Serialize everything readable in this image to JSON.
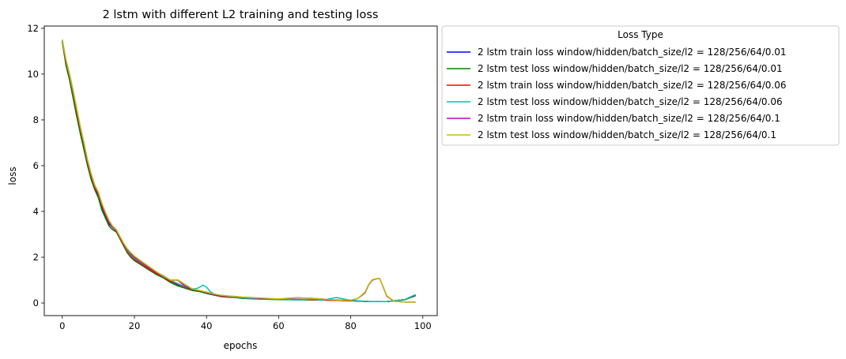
{
  "chart_data": {
    "type": "line",
    "title": "2 lstm with different L2 training and testing loss",
    "xlabel": "epochs",
    "ylabel": "loss",
    "xlim": [
      -5,
      104
    ],
    "ylim": [
      -0.55,
      12.1
    ],
    "xticks": [
      0,
      20,
      40,
      60,
      80,
      100
    ],
    "yticks": [
      0,
      2,
      4,
      6,
      8,
      10,
      12
    ],
    "grid": false,
    "legend_title": "Loss Type",
    "legend_position": "outside-top-right",
    "series": [
      {
        "name": "2 lstm train loss window/hidden/batch_size/l2 = 128/256/64/0.01",
        "color": "#0000ff",
        "x": [
          0,
          1,
          2,
          3,
          4,
          5,
          6,
          7,
          8,
          9,
          10,
          11,
          12,
          13,
          14,
          15,
          16,
          17,
          18,
          19,
          20,
          22,
          24,
          26,
          28,
          30,
          32,
          34,
          36,
          38,
          40,
          42,
          44,
          46,
          48,
          50,
          55,
          60,
          65,
          70,
          75,
          80,
          85,
          90,
          95,
          98
        ],
        "y": [
          11.45,
          10.5,
          9.85,
          9.1,
          8.3,
          7.55,
          6.85,
          6.1,
          5.5,
          5.0,
          4.7,
          4.2,
          3.8,
          3.45,
          3.3,
          3.15,
          2.85,
          2.55,
          2.25,
          2.05,
          1.9,
          1.7,
          1.5,
          1.3,
          1.15,
          0.95,
          0.8,
          0.7,
          0.6,
          0.55,
          0.45,
          0.38,
          0.3,
          0.26,
          0.25,
          0.22,
          0.18,
          0.16,
          0.15,
          0.14,
          0.12,
          0.1,
          0.06,
          0.06,
          0.15,
          0.35
        ]
      },
      {
        "name": "2 lstm test loss window/hidden/batch_size/l2  = 128/256/64/0.01",
        "color": "#008000",
        "x": [
          0,
          1,
          2,
          3,
          4,
          5,
          6,
          7,
          8,
          9,
          10,
          11,
          12,
          13,
          14,
          15,
          16,
          17,
          18,
          19,
          20,
          22,
          24,
          26,
          28,
          30,
          32,
          34,
          36,
          38,
          40,
          42,
          44,
          46,
          48,
          50,
          55,
          60,
          65,
          70,
          75,
          80,
          85,
          90,
          95,
          98
        ],
        "y": [
          11.4,
          10.4,
          9.75,
          8.95,
          8.15,
          7.4,
          6.7,
          6.0,
          5.4,
          4.95,
          4.6,
          4.05,
          3.7,
          3.35,
          3.2,
          3.1,
          2.8,
          2.5,
          2.2,
          2.0,
          1.85,
          1.65,
          1.45,
          1.25,
          1.1,
          0.9,
          0.75,
          0.65,
          0.55,
          0.5,
          0.42,
          0.35,
          0.28,
          0.25,
          0.24,
          0.2,
          0.17,
          0.15,
          0.14,
          0.13,
          0.12,
          0.1,
          0.07,
          0.06,
          0.14,
          0.32
        ]
      },
      {
        "name": "2 lstm train loss window/hidden/batch_size/l2 = 128/256/64/0.06",
        "color": "#ff0000",
        "x": [
          0,
          1,
          2,
          3,
          4,
          5,
          6,
          7,
          8,
          9,
          10,
          11,
          12,
          13,
          14,
          15,
          16,
          17,
          18,
          19,
          20,
          22,
          24,
          26,
          28,
          30,
          32,
          34,
          36,
          38,
          40,
          42,
          44,
          46,
          48,
          50,
          55,
          60,
          65,
          70,
          75,
          80,
          85,
          90,
          95,
          98
        ],
        "y": [
          11.45,
          10.55,
          9.9,
          9.15,
          8.35,
          7.6,
          6.9,
          6.15,
          5.55,
          5.05,
          4.75,
          4.25,
          3.85,
          3.5,
          3.3,
          3.15,
          2.85,
          2.55,
          2.25,
          2.05,
          1.9,
          1.7,
          1.5,
          1.3,
          1.15,
          0.95,
          0.82,
          0.7,
          0.6,
          0.55,
          0.46,
          0.38,
          0.3,
          0.26,
          0.25,
          0.22,
          0.18,
          0.16,
          0.15,
          0.14,
          0.12,
          0.1,
          0.06,
          0.06,
          0.15,
          0.35
        ]
      },
      {
        "name": "2 lstm test loss window/hidden/batch_size/l2  = 128/256/64/0.06",
        "color": "#00bfbf",
        "x": [
          0,
          1,
          2,
          3,
          4,
          5,
          6,
          7,
          8,
          9,
          10,
          11,
          12,
          13,
          14,
          15,
          16,
          17,
          18,
          19,
          20,
          22,
          24,
          26,
          28,
          30,
          32,
          34,
          36,
          37,
          38,
          39,
          40,
          41,
          42,
          44,
          46,
          48,
          50,
          55,
          60,
          65,
          70,
          72,
          74,
          76,
          78,
          80,
          85,
          90,
          95,
          98
        ],
        "y": [
          11.45,
          10.6,
          9.95,
          9.2,
          8.45,
          7.7,
          7.0,
          6.25,
          5.65,
          5.15,
          4.8,
          4.3,
          3.9,
          3.55,
          3.35,
          3.2,
          2.9,
          2.6,
          2.3,
          2.1,
          1.95,
          1.75,
          1.55,
          1.35,
          1.2,
          1.0,
          0.85,
          0.72,
          0.62,
          0.62,
          0.68,
          0.78,
          0.7,
          0.5,
          0.4,
          0.32,
          0.28,
          0.26,
          0.22,
          0.18,
          0.16,
          0.14,
          0.16,
          0.12,
          0.18,
          0.24,
          0.18,
          0.12,
          0.06,
          0.06,
          0.15,
          0.37
        ]
      },
      {
        "name": "2 lstm train loss window/hidden/batch_size/l2 = 128/256/64/0.1",
        "color": "#bf00bf",
        "x": [
          0,
          1,
          2,
          3,
          4,
          5,
          6,
          7,
          8,
          9,
          10,
          11,
          12,
          13,
          14,
          15,
          16,
          17,
          18,
          19,
          20,
          22,
          24,
          26,
          28,
          30,
          32,
          34,
          36,
          38,
          40,
          42,
          44,
          46,
          48,
          50,
          55,
          60,
          65,
          70,
          75,
          80,
          82,
          84,
          85,
          86,
          87,
          88,
          89,
          90,
          92,
          95,
          98
        ],
        "y": [
          11.5,
          10.6,
          10.0,
          9.25,
          8.45,
          7.65,
          6.95,
          6.2,
          5.6,
          5.1,
          4.8,
          4.3,
          3.9,
          3.55,
          3.3,
          3.15,
          2.88,
          2.6,
          2.35,
          2.15,
          2.0,
          1.78,
          1.55,
          1.35,
          1.15,
          1.0,
          1.0,
          0.75,
          0.6,
          0.55,
          0.45,
          0.38,
          0.32,
          0.3,
          0.28,
          0.25,
          0.2,
          0.17,
          0.22,
          0.2,
          0.14,
          0.12,
          0.2,
          0.45,
          0.8,
          1.0,
          1.05,
          1.08,
          0.7,
          0.3,
          0.08,
          0.04,
          0.04
        ]
      },
      {
        "name": "2 lstm test loss window/hidden/batch_size/l2  = 128/256/64/0.1",
        "color": "#bfbf00",
        "x": [
          0,
          1,
          2,
          3,
          4,
          5,
          6,
          7,
          8,
          9,
          10,
          11,
          12,
          13,
          14,
          15,
          16,
          17,
          18,
          19,
          20,
          22,
          24,
          26,
          28,
          30,
          31,
          32,
          34,
          36,
          38,
          40,
          42,
          44,
          46,
          48,
          50,
          55,
          60,
          65,
          70,
          75,
          80,
          82,
          84,
          85,
          86,
          87,
          88,
          89,
          90,
          92,
          95,
          98
        ],
        "y": [
          11.5,
          10.65,
          10.0,
          9.3,
          8.5,
          7.7,
          7.0,
          6.25,
          5.65,
          5.15,
          4.85,
          4.35,
          3.95,
          3.6,
          3.35,
          3.2,
          2.9,
          2.62,
          2.38,
          2.2,
          2.05,
          1.82,
          1.6,
          1.38,
          1.18,
          1.0,
          1.0,
          1.02,
          0.82,
          0.62,
          0.55,
          0.48,
          0.4,
          0.34,
          0.31,
          0.29,
          0.26,
          0.22,
          0.18,
          0.24,
          0.2,
          0.14,
          0.12,
          0.2,
          0.48,
          0.82,
          1.02,
          1.06,
          1.08,
          0.72,
          0.32,
          0.08,
          0.04,
          0.04
        ]
      }
    ]
  }
}
